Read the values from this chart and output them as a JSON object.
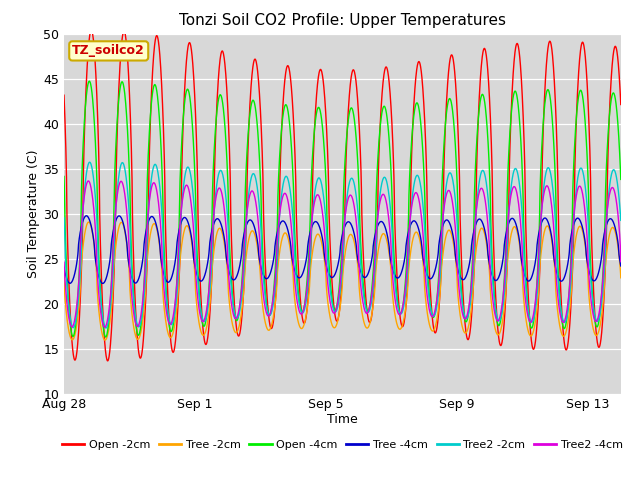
{
  "title": "Tonzi Soil CO2 Profile: Upper Temperatures",
  "xlabel": "Time",
  "ylabel": "Soil Temperature (C)",
  "ylim": [
    10,
    50
  ],
  "xlim_days": [
    0,
    17
  ],
  "tick_labels": [
    "Aug 28",
    "Sep 1",
    "Sep 5",
    "Sep 9",
    "Sep 13"
  ],
  "tick_positions": [
    0,
    4,
    8,
    12,
    16
  ],
  "plot_bg": "#d8d8d8",
  "fig_bg": "#ffffff",
  "legend_label": "TZ_soilco2",
  "series": [
    {
      "name": "Open -2cm",
      "color": "#ff0000",
      "amp": 16.5,
      "phase": 0.0,
      "mean": 32.0,
      "amp_vary": 0.12
    },
    {
      "name": "Tree -2cm",
      "color": "#ffa500",
      "amp": 6.0,
      "phase": 0.08,
      "mean": 22.5,
      "amp_vary": 0.1
    },
    {
      "name": "Open -4cm",
      "color": "#00ee00",
      "amp": 13.0,
      "phase": 0.06,
      "mean": 30.5,
      "amp_vary": 0.1
    },
    {
      "name": "Tree -4cm",
      "color": "#0000cc",
      "amp": 3.5,
      "phase": 0.15,
      "mean": 26.0,
      "amp_vary": 0.08
    },
    {
      "name": "Tree2 -2cm",
      "color": "#00cccc",
      "amp": 8.5,
      "phase": 0.05,
      "mean": 26.5,
      "amp_vary": 0.09
    },
    {
      "name": "Tree2 -4cm",
      "color": "#dd00dd",
      "amp": 7.5,
      "phase": 0.09,
      "mean": 25.5,
      "amp_vary": 0.09
    }
  ],
  "legend_items": [
    {
      "label": "Open -2cm",
      "color": "#ff0000"
    },
    {
      "label": "Tree -2cm",
      "color": "#ffa500"
    },
    {
      "label": "Open -4cm",
      "color": "#00ee00"
    },
    {
      "label": "Tree -4cm",
      "color": "#0000cc"
    },
    {
      "label": "Tree2 -2cm",
      "color": "#00cccc"
    },
    {
      "label": "Tree2 -4cm",
      "color": "#dd00dd"
    }
  ]
}
